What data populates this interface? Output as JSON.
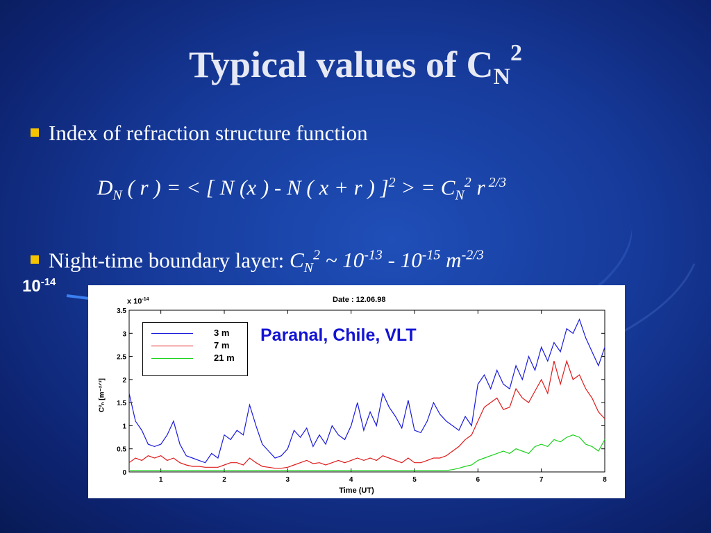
{
  "slide": {
    "title_main": "Typical values of C",
    "title_sub": "N",
    "title_sup": "2",
    "bullet1": "Index of refraction structure function",
    "equation": {
      "lhs": "D",
      "lhs_sub": "N",
      "body": " ( r ) = < [ N (x ) - N ( x + r ) ]",
      "sq": "2",
      "mid": " > = C",
      "cn_sub": "N",
      "cn_sup": "2",
      "tail": "  r",
      "tail_sup": " 2/3"
    },
    "bullet2": {
      "text": "Night-time boundary layer:  ",
      "c": "C",
      "c_sub": "N",
      "c_sup": "2",
      "range_a": " ~ 10",
      "exp_a": "-13",
      "range_b": " - 10",
      "exp_b": "-15",
      "unit": "  m",
      "unit_exp": "-2/3"
    },
    "arrow_label": "10",
    "arrow_label_sup": "-14",
    "bullet_color": "#f5c400"
  },
  "chart_data": {
    "type": "line",
    "title": "Date : 12.06.98",
    "scale_factor": "x 10",
    "scale_factor_exp": "-14",
    "xlabel": "Time (UT)",
    "ylabel": "C²ₙ [m⁻²ᐟ³]",
    "annotation": "Paranal, Chile, VLT",
    "xlim": [
      0.5,
      8
    ],
    "ylim": [
      0,
      3.5
    ],
    "xticks": [
      1,
      2,
      3,
      4,
      5,
      6,
      7,
      8
    ],
    "yticks": [
      0,
      0.5,
      1,
      1.5,
      2,
      2.5,
      3,
      3.5
    ],
    "legend_position": "top-left",
    "series": [
      {
        "name": "3 m",
        "color": "#1a1adc",
        "x": [
          0.5,
          0.6,
          0.7,
          0.8,
          0.9,
          1.0,
          1.1,
          1.2,
          1.3,
          1.4,
          1.5,
          1.6,
          1.7,
          1.8,
          1.9,
          2.0,
          2.1,
          2.2,
          2.3,
          2.4,
          2.5,
          2.6,
          2.7,
          2.8,
          2.9,
          3.0,
          3.1,
          3.2,
          3.3,
          3.4,
          3.5,
          3.6,
          3.7,
          3.8,
          3.9,
          4.0,
          4.1,
          4.2,
          4.3,
          4.4,
          4.5,
          4.6,
          4.7,
          4.8,
          4.9,
          5.0,
          5.1,
          5.2,
          5.3,
          5.4,
          5.5,
          5.6,
          5.7,
          5.8,
          5.9,
          6.0,
          6.1,
          6.2,
          6.3,
          6.4,
          6.5,
          6.6,
          6.7,
          6.8,
          6.9,
          7.0,
          7.1,
          7.2,
          7.3,
          7.4,
          7.5,
          7.6,
          7.7,
          7.8,
          7.9,
          8.0
        ],
        "values": [
          1.7,
          1.1,
          0.9,
          0.6,
          0.55,
          0.6,
          0.8,
          1.1,
          0.6,
          0.35,
          0.3,
          0.25,
          0.2,
          0.4,
          0.3,
          0.8,
          0.7,
          0.9,
          0.8,
          1.45,
          1.0,
          0.6,
          0.45,
          0.3,
          0.35,
          0.5,
          0.9,
          0.75,
          0.95,
          0.55,
          0.8,
          0.6,
          1.0,
          0.8,
          0.7,
          1.0,
          1.5,
          0.9,
          1.3,
          1.0,
          1.7,
          1.4,
          1.2,
          0.95,
          1.55,
          0.9,
          0.85,
          1.1,
          1.5,
          1.25,
          1.1,
          1.0,
          0.9,
          1.2,
          1.0,
          1.9,
          2.1,
          1.8,
          2.2,
          1.9,
          1.8,
          2.3,
          2.0,
          2.5,
          2.2,
          2.7,
          2.4,
          2.8,
          2.6,
          3.1,
          3.0,
          3.3,
          2.9,
          2.6,
          2.3,
          2.7
        ]
      },
      {
        "name": "7 m",
        "color": "#e01a1a",
        "x": [
          0.5,
          0.6,
          0.7,
          0.8,
          0.9,
          1.0,
          1.1,
          1.2,
          1.3,
          1.4,
          1.5,
          1.6,
          1.7,
          1.8,
          1.9,
          2.0,
          2.1,
          2.2,
          2.3,
          2.4,
          2.5,
          2.6,
          2.7,
          2.8,
          2.9,
          3.0,
          3.1,
          3.2,
          3.3,
          3.4,
          3.5,
          3.6,
          3.7,
          3.8,
          3.9,
          4.0,
          4.1,
          4.2,
          4.3,
          4.4,
          4.5,
          4.6,
          4.7,
          4.8,
          4.9,
          5.0,
          5.1,
          5.2,
          5.3,
          5.4,
          5.5,
          5.6,
          5.7,
          5.8,
          5.9,
          6.0,
          6.1,
          6.2,
          6.3,
          6.4,
          6.5,
          6.6,
          6.7,
          6.8,
          6.9,
          7.0,
          7.1,
          7.2,
          7.3,
          7.4,
          7.5,
          7.6,
          7.7,
          7.8,
          7.9,
          8.0
        ],
        "values": [
          0.2,
          0.3,
          0.25,
          0.35,
          0.3,
          0.35,
          0.25,
          0.3,
          0.2,
          0.15,
          0.12,
          0.12,
          0.1,
          0.1,
          0.1,
          0.15,
          0.2,
          0.2,
          0.15,
          0.3,
          0.2,
          0.12,
          0.1,
          0.08,
          0.08,
          0.1,
          0.15,
          0.2,
          0.25,
          0.18,
          0.2,
          0.15,
          0.2,
          0.25,
          0.2,
          0.25,
          0.3,
          0.25,
          0.3,
          0.25,
          0.35,
          0.3,
          0.25,
          0.2,
          0.3,
          0.2,
          0.2,
          0.25,
          0.3,
          0.3,
          0.35,
          0.45,
          0.55,
          0.7,
          0.8,
          1.1,
          1.4,
          1.5,
          1.6,
          1.35,
          1.4,
          1.8,
          1.6,
          1.5,
          1.75,
          2.0,
          1.7,
          2.4,
          1.9,
          2.4,
          2.0,
          2.1,
          1.8,
          1.6,
          1.3,
          1.15
        ]
      },
      {
        "name": "21 m",
        "color": "#1ad21a",
        "x": [
          0.5,
          0.6,
          0.7,
          0.8,
          0.9,
          1.0,
          1.1,
          1.2,
          1.3,
          1.4,
          1.5,
          1.6,
          1.7,
          1.8,
          1.9,
          2.0,
          2.1,
          2.2,
          2.3,
          2.4,
          2.5,
          2.6,
          2.7,
          2.8,
          2.9,
          3.0,
          3.1,
          3.2,
          3.3,
          3.4,
          3.5,
          3.6,
          3.7,
          3.8,
          3.9,
          4.0,
          4.1,
          4.2,
          4.3,
          4.4,
          4.5,
          4.6,
          4.7,
          4.8,
          4.9,
          5.0,
          5.1,
          5.2,
          5.3,
          5.4,
          5.5,
          5.6,
          5.7,
          5.8,
          5.9,
          6.0,
          6.1,
          6.2,
          6.3,
          6.4,
          6.5,
          6.6,
          6.7,
          6.8,
          6.9,
          7.0,
          7.1,
          7.2,
          7.3,
          7.4,
          7.5,
          7.6,
          7.7,
          7.8,
          7.9,
          8.0
        ],
        "values": [
          0.03,
          0.03,
          0.03,
          0.03,
          0.03,
          0.03,
          0.03,
          0.03,
          0.03,
          0.03,
          0.03,
          0.03,
          0.03,
          0.03,
          0.03,
          0.03,
          0.03,
          0.03,
          0.03,
          0.03,
          0.03,
          0.03,
          0.03,
          0.03,
          0.03,
          0.03,
          0.03,
          0.03,
          0.03,
          0.03,
          0.03,
          0.03,
          0.03,
          0.03,
          0.03,
          0.03,
          0.03,
          0.03,
          0.03,
          0.03,
          0.03,
          0.03,
          0.03,
          0.03,
          0.03,
          0.03,
          0.03,
          0.03,
          0.03,
          0.03,
          0.03,
          0.05,
          0.08,
          0.12,
          0.15,
          0.25,
          0.3,
          0.35,
          0.4,
          0.45,
          0.4,
          0.5,
          0.45,
          0.4,
          0.55,
          0.6,
          0.55,
          0.7,
          0.65,
          0.75,
          0.8,
          0.75,
          0.6,
          0.55,
          0.45,
          0.7
        ]
      }
    ]
  }
}
